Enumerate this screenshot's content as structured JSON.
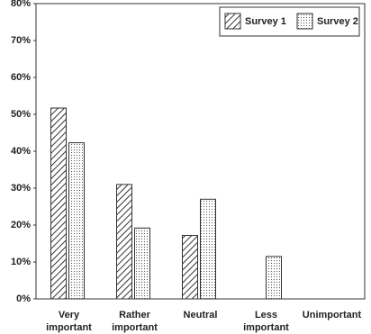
{
  "chart_data": {
    "type": "bar",
    "categories": [
      "Very important",
      "Rather important",
      "Neutral",
      "Less important",
      "Unimportant"
    ],
    "series": [
      {
        "name": "Survey 1",
        "color": "#333333",
        "pattern": "diagonal",
        "values": [
          51.7,
          31,
          17.2,
          0,
          0
        ]
      },
      {
        "name": "Survey 2",
        "color": "#333333",
        "pattern": "dots",
        "values": [
          42.3,
          19.2,
          27,
          11.5,
          0
        ]
      }
    ],
    "ylim": [
      0,
      80
    ],
    "yticks": [
      {
        "value": 0,
        "label": "0%"
      },
      {
        "value": 10,
        "label": "10%"
      },
      {
        "value": 20,
        "label": "20%"
      },
      {
        "value": 30,
        "label": "30%"
      },
      {
        "value": 40,
        "label": "40%"
      },
      {
        "value": 50,
        "label": "50%"
      },
      {
        "value": 60,
        "label": "60%"
      },
      {
        "value": 70,
        "label": "70%"
      },
      {
        "value": 80,
        "label": "80%"
      }
    ],
    "grid": false,
    "legend": "top-right"
  }
}
